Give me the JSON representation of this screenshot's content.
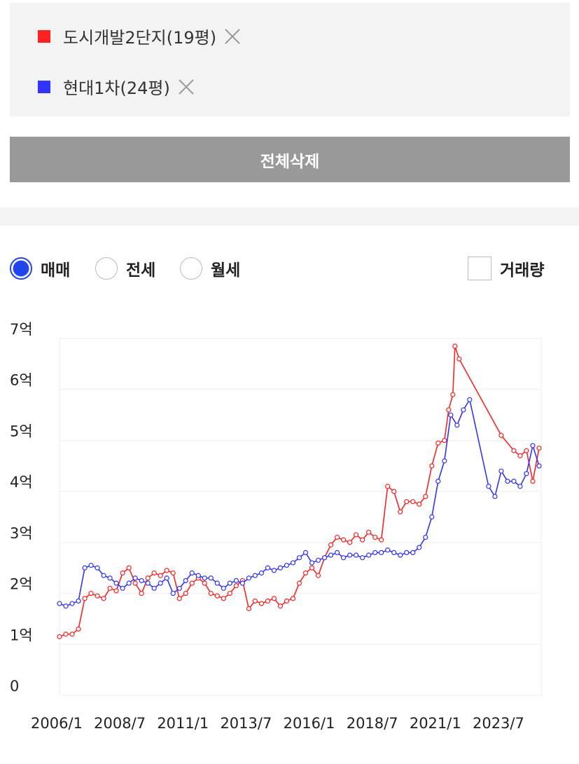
{
  "ui": {
    "delete_all": "전체삭제",
    "radios": [
      "매매",
      "전세",
      "월세"
    ],
    "selected_radio": 0,
    "volume_checkbox": "거래량",
    "volume_checked": false
  },
  "chart_data": {
    "type": "line",
    "xlim": [
      "2006/1",
      "2025/2"
    ],
    "xticks": [
      "2006/1",
      "2008/7",
      "2011/1",
      "2013/7",
      "2016/1",
      "2018/7",
      "2021/1",
      "2023/7"
    ],
    "ylim": [
      0,
      7
    ],
    "yticks": [
      0,
      {
        "value": 1,
        "label": "1억"
      },
      {
        "value": 2,
        "label": "2억"
      },
      {
        "value": 3,
        "label": "3억"
      },
      {
        "value": 4,
        "label": "4억"
      },
      {
        "value": 5,
        "label": "5억"
      },
      {
        "value": 6,
        "label": "6억"
      },
      {
        "value": 7,
        "label": "7억"
      }
    ],
    "grid": true,
    "series": [
      {
        "name": "도시개발2단지(19평)",
        "color": "#ff2222",
        "x": [
          "2006/1",
          "2006/4",
          "2006/7",
          "2006/10",
          "2007/1",
          "2007/4",
          "2007/7",
          "2007/10",
          "2008/1",
          "2008/4",
          "2008/7",
          "2008/10",
          "2009/1",
          "2009/4",
          "2009/7",
          "2009/10",
          "2010/1",
          "2010/4",
          "2010/7",
          "2010/10",
          "2011/1",
          "2011/4",
          "2011/7",
          "2011/10",
          "2012/1",
          "2012/4",
          "2012/7",
          "2012/10",
          "2013/1",
          "2013/4",
          "2013/7",
          "2013/10",
          "2014/1",
          "2014/4",
          "2014/7",
          "2014/10",
          "2015/1",
          "2015/4",
          "2015/7",
          "2015/10",
          "2016/1",
          "2016/4",
          "2016/7",
          "2016/10",
          "2017/1",
          "2017/4",
          "2017/7",
          "2017/10",
          "2018/1",
          "2018/4",
          "2018/7",
          "2018/10",
          "2019/1",
          "2019/4",
          "2019/7",
          "2019/10",
          "2020/1",
          "2020/4",
          "2020/7",
          "2020/10",
          "2021/1",
          "2021/4",
          "2021/6",
          "2021/8",
          "2021/9",
          "2021/11",
          "2023/7",
          "2024/1",
          "2024/4",
          "2024/7",
          "2024/10",
          "2025/1"
        ],
        "values": [
          1.15,
          1.2,
          1.2,
          1.3,
          1.9,
          2.0,
          1.95,
          1.9,
          2.1,
          2.05,
          2.4,
          2.5,
          2.2,
          2.0,
          2.3,
          2.4,
          2.35,
          2.45,
          2.4,
          1.9,
          2.0,
          2.2,
          2.3,
          2.2,
          2.0,
          1.95,
          1.9,
          2.0,
          2.15,
          2.25,
          1.7,
          1.85,
          1.8,
          1.85,
          1.9,
          1.75,
          1.85,
          1.9,
          2.2,
          2.4,
          2.5,
          2.35,
          2.7,
          2.95,
          3.1,
          3.05,
          3.0,
          3.15,
          3.05,
          3.2,
          3.1,
          3.05,
          4.1,
          4.0,
          3.6,
          3.8,
          3.8,
          3.75,
          3.9,
          4.5,
          4.95,
          5.0,
          5.6,
          5.9,
          6.85,
          6.6,
          5.1,
          4.8,
          4.7,
          4.8,
          4.2,
          4.85
        ]
      },
      {
        "name": "현대1차(24평)",
        "color": "#3333ff",
        "x": [
          "2006/1",
          "2006/4",
          "2006/7",
          "2006/10",
          "2007/1",
          "2007/4",
          "2007/7",
          "2007/10",
          "2008/1",
          "2008/4",
          "2008/7",
          "2008/10",
          "2009/1",
          "2009/4",
          "2009/7",
          "2009/10",
          "2010/1",
          "2010/4",
          "2010/7",
          "2010/10",
          "2011/1",
          "2011/4",
          "2011/7",
          "2011/10",
          "2012/1",
          "2012/4",
          "2012/7",
          "2012/10",
          "2013/1",
          "2013/4",
          "2013/7",
          "2013/10",
          "2014/1",
          "2014/4",
          "2014/7",
          "2014/10",
          "2015/1",
          "2015/4",
          "2015/7",
          "2015/10",
          "2016/1",
          "2016/4",
          "2016/7",
          "2016/10",
          "2017/1",
          "2017/4",
          "2017/7",
          "2017/10",
          "2018/1",
          "2018/4",
          "2018/7",
          "2018/10",
          "2019/1",
          "2019/4",
          "2019/7",
          "2019/10",
          "2020/1",
          "2020/4",
          "2020/7",
          "2020/10",
          "2021/1",
          "2021/4",
          "2021/7",
          "2021/10",
          "2022/1",
          "2022/4",
          "2023/1",
          "2023/4",
          "2023/7",
          "2023/10",
          "2024/1",
          "2024/4",
          "2024/7",
          "2024/10",
          "2025/1"
        ],
        "values": [
          1.8,
          1.75,
          1.8,
          1.85,
          2.5,
          2.55,
          2.5,
          2.35,
          2.3,
          2.2,
          2.1,
          2.2,
          2.3,
          2.25,
          2.2,
          2.1,
          2.2,
          2.3,
          2.0,
          2.1,
          2.25,
          2.4,
          2.35,
          2.3,
          2.3,
          2.2,
          2.1,
          2.2,
          2.25,
          2.2,
          2.3,
          2.35,
          2.4,
          2.5,
          2.45,
          2.5,
          2.55,
          2.6,
          2.7,
          2.8,
          2.6,
          2.65,
          2.7,
          2.75,
          2.8,
          2.7,
          2.75,
          2.75,
          2.7,
          2.75,
          2.8,
          2.8,
          2.85,
          2.8,
          2.75,
          2.8,
          2.8,
          2.9,
          3.1,
          3.5,
          4.2,
          4.6,
          5.5,
          5.3,
          5.6,
          5.8,
          4.1,
          3.9,
          4.4,
          4.2,
          4.2,
          4.1,
          4.35,
          4.9,
          4.5
        ]
      }
    ]
  }
}
